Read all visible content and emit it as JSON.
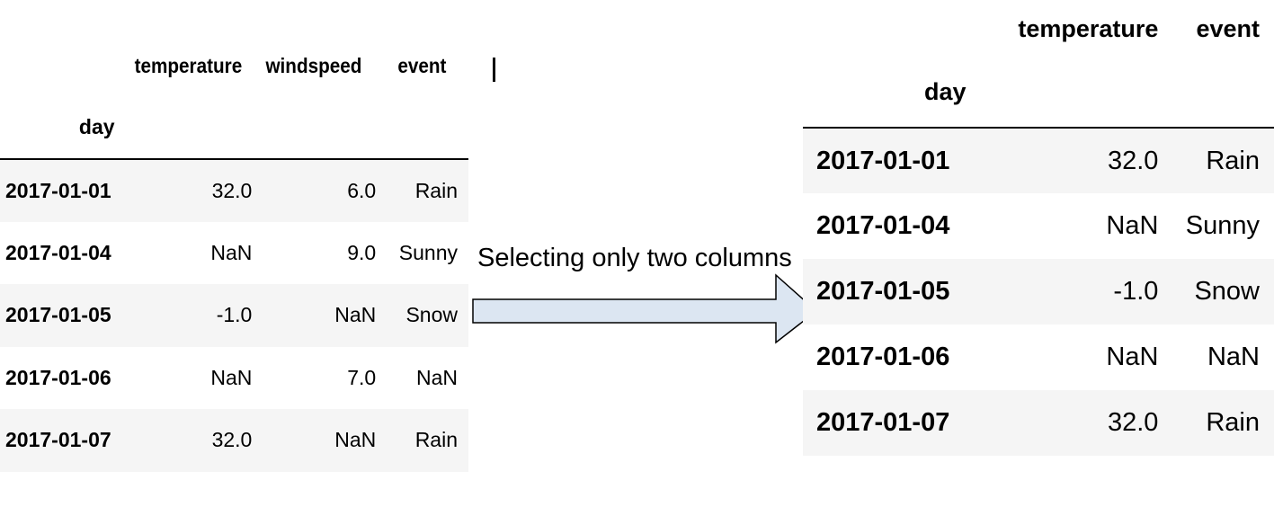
{
  "left_table": {
    "columns": [
      "temperature",
      "windspeed",
      "event"
    ],
    "index_name": "day",
    "rows": [
      {
        "day": "2017-01-01",
        "temperature": "32.0",
        "windspeed": "6.0",
        "event": "Rain"
      },
      {
        "day": "2017-01-04",
        "temperature": "NaN",
        "windspeed": "9.0",
        "event": "Sunny"
      },
      {
        "day": "2017-01-05",
        "temperature": "-1.0",
        "windspeed": "NaN",
        "event": "Snow"
      },
      {
        "day": "2017-01-06",
        "temperature": "NaN",
        "windspeed": "7.0",
        "event": "NaN"
      },
      {
        "day": "2017-01-07",
        "temperature": "32.0",
        "windspeed": "NaN",
        "event": "Rain"
      }
    ]
  },
  "arrow": {
    "label": "Selecting only two columns",
    "fill_color": "#dce6f2",
    "stroke_color": "#000000"
  },
  "right_table": {
    "columns": [
      "temperature",
      "event"
    ],
    "index_name": "day",
    "rows": [
      {
        "day": "2017-01-01",
        "temperature": "32.0",
        "event": "Rain"
      },
      {
        "day": "2017-01-04",
        "temperature": "NaN",
        "event": "Sunny"
      },
      {
        "day": "2017-01-05",
        "temperature": "-1.0",
        "event": "Snow"
      },
      {
        "day": "2017-01-06",
        "temperature": "NaN",
        "event": "NaN"
      },
      {
        "day": "2017-01-07",
        "temperature": "32.0",
        "event": "Rain"
      }
    ]
  },
  "colors": {
    "stripe": "#f5f5f5",
    "rule": "#000000"
  }
}
